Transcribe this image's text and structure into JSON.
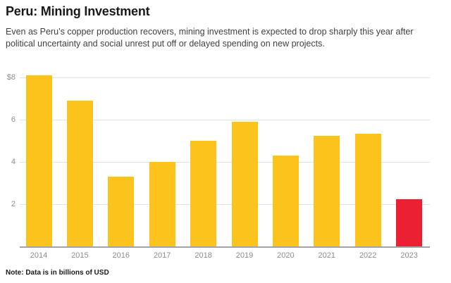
{
  "header": {
    "title": "Peru: Mining Investment",
    "subtitle_lines": [
      "Even as Peru’s copper production recovers, mining investment is expected to drop sharply this year after",
      "political uncertainty and social unrest put off or delayed spending on new projects."
    ]
  },
  "footer": {
    "note": "Note: Data is in billions of USD"
  },
  "chart_data": {
    "type": "bar",
    "title": "Peru: Mining Investment",
    "categories": [
      "2014",
      "2015",
      "2016",
      "2017",
      "2018",
      "2019",
      "2020",
      "2021",
      "2022",
      "2023"
    ],
    "values": [
      8.1,
      6.9,
      3.3,
      4.0,
      5.0,
      5.9,
      4.3,
      5.25,
      5.35,
      2.25
    ],
    "unit": "billions of USD",
    "xlabel": "",
    "ylabel": "",
    "ylim": [
      0,
      8.35
    ],
    "yticks": [
      {
        "value": 2,
        "label": "2"
      },
      {
        "value": 4,
        "label": "4"
      },
      {
        "value": 6,
        "label": "6"
      },
      {
        "value": 8,
        "label": "$8"
      }
    ],
    "grid": true,
    "legend": "none",
    "colors": {
      "bar_default": "#FCC31D",
      "bar_highlight": "#EC2033",
      "gridline": "#e3e3e3",
      "baseline": "#a3a3a3",
      "tick_text": "#8c8c8c"
    },
    "highlight_index": 9,
    "highlight_category": "2023"
  }
}
